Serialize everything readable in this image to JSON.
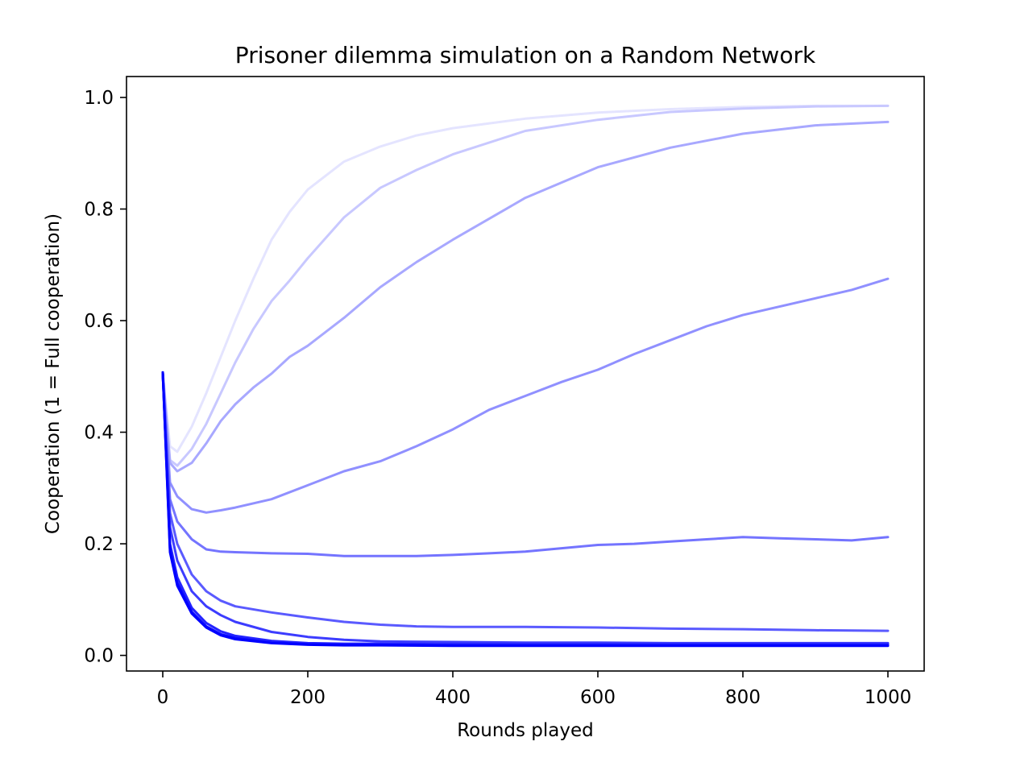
{
  "chart_data": {
    "type": "line",
    "title": "Prisoner dilemma simulation on a Random Network",
    "xlabel": "Rounds played",
    "ylabel": "Cooperation (1 = Full cooperation)",
    "xlim": [
      -50,
      1050
    ],
    "ylim": [
      -0.028,
      1.0375
    ],
    "xticks": [
      0,
      200,
      400,
      600,
      800,
      1000
    ],
    "yticks": [
      0.0,
      0.2,
      0.4,
      0.6,
      0.8,
      1.0
    ],
    "xtick_labels": [
      "0",
      "200",
      "400",
      "600",
      "800",
      "1000"
    ],
    "ytick_labels": [
      "0.0",
      "0.2",
      "0.4",
      "0.6",
      "0.8",
      "1.0"
    ],
    "grid": false,
    "legend": "none",
    "series": [
      {
        "color": "#e4e4ff",
        "x": [
          0,
          10,
          20,
          40,
          60,
          80,
          100,
          125,
          150,
          175,
          200,
          250,
          300,
          350,
          400,
          500,
          600,
          700,
          800,
          900,
          1000
        ],
        "y": [
          0.507,
          0.375,
          0.365,
          0.41,
          0.47,
          0.535,
          0.6,
          0.675,
          0.745,
          0.795,
          0.835,
          0.885,
          0.912,
          0.932,
          0.945,
          0.962,
          0.973,
          0.979,
          0.983,
          0.985,
          0.985
        ]
      },
      {
        "color": "#c8c8ff",
        "x": [
          0,
          10,
          20,
          40,
          60,
          80,
          100,
          125,
          150,
          175,
          200,
          250,
          300,
          350,
          400,
          500,
          600,
          700,
          800,
          900,
          1000
        ],
        "y": [
          0.507,
          0.35,
          0.34,
          0.37,
          0.415,
          0.47,
          0.525,
          0.585,
          0.635,
          0.672,
          0.712,
          0.785,
          0.838,
          0.87,
          0.898,
          0.94,
          0.96,
          0.974,
          0.98,
          0.984,
          0.985
        ]
      },
      {
        "color": "#a8a8ff",
        "x": [
          0,
          10,
          20,
          40,
          60,
          80,
          100,
          125,
          150,
          175,
          200,
          250,
          300,
          350,
          400,
          500,
          600,
          700,
          800,
          900,
          1000
        ],
        "y": [
          0.507,
          0.345,
          0.33,
          0.345,
          0.38,
          0.42,
          0.45,
          0.48,
          0.505,
          0.535,
          0.555,
          0.605,
          0.66,
          0.705,
          0.745,
          0.82,
          0.875,
          0.91,
          0.935,
          0.95,
          0.956
        ]
      },
      {
        "color": "#9090ff",
        "x": [
          0,
          10,
          20,
          40,
          60,
          80,
          100,
          150,
          200,
          250,
          300,
          350,
          400,
          450,
          500,
          550,
          600,
          650,
          700,
          750,
          800,
          850,
          900,
          950,
          1000
        ],
        "y": [
          0.507,
          0.31,
          0.285,
          0.262,
          0.256,
          0.26,
          0.265,
          0.28,
          0.305,
          0.33,
          0.348,
          0.375,
          0.405,
          0.44,
          0.465,
          0.49,
          0.512,
          0.54,
          0.565,
          0.59,
          0.61,
          0.625,
          0.64,
          0.655,
          0.675
        ]
      },
      {
        "color": "#7474ff",
        "x": [
          0,
          10,
          20,
          40,
          60,
          80,
          100,
          150,
          200,
          250,
          300,
          350,
          400,
          450,
          500,
          550,
          600,
          650,
          700,
          750,
          800,
          850,
          900,
          950,
          1000
        ],
        "y": [
          0.507,
          0.28,
          0.24,
          0.208,
          0.19,
          0.186,
          0.185,
          0.183,
          0.182,
          0.178,
          0.178,
          0.178,
          0.18,
          0.183,
          0.186,
          0.192,
          0.198,
          0.2,
          0.204,
          0.208,
          0.212,
          0.21,
          0.208,
          0.206,
          0.212
        ]
      },
      {
        "color": "#5a5aff",
        "x": [
          0,
          10,
          20,
          40,
          60,
          80,
          100,
          150,
          200,
          250,
          300,
          350,
          400,
          500,
          600,
          700,
          800,
          900,
          1000
        ],
        "y": [
          0.507,
          0.255,
          0.2,
          0.145,
          0.115,
          0.098,
          0.088,
          0.077,
          0.068,
          0.06,
          0.055,
          0.052,
          0.051,
          0.051,
          0.05,
          0.048,
          0.047,
          0.045,
          0.044
        ]
      },
      {
        "color": "#3c3cff",
        "x": [
          0,
          10,
          20,
          40,
          60,
          80,
          100,
          150,
          200,
          250,
          300,
          400,
          500,
          600,
          700,
          800,
          900,
          1000
        ],
        "y": [
          0.507,
          0.23,
          0.17,
          0.115,
          0.088,
          0.072,
          0.06,
          0.042,
          0.033,
          0.028,
          0.025,
          0.024,
          0.023,
          0.023,
          0.022,
          0.022,
          0.022,
          0.022
        ]
      },
      {
        "color": "#2424ff",
        "x": [
          0,
          10,
          20,
          40,
          60,
          80,
          100,
          150,
          200,
          250,
          300,
          400,
          500,
          600,
          700,
          800,
          900,
          1000
        ],
        "y": [
          0.507,
          0.2,
          0.14,
          0.085,
          0.058,
          0.043,
          0.035,
          0.026,
          0.022,
          0.021,
          0.021,
          0.02,
          0.02,
          0.02,
          0.02,
          0.02,
          0.02,
          0.02
        ]
      },
      {
        "color": "#0c0cff",
        "x": [
          0,
          10,
          20,
          40,
          60,
          80,
          100,
          150,
          200,
          250,
          300,
          400,
          500,
          600,
          700,
          800,
          900,
          1000
        ],
        "y": [
          0.507,
          0.19,
          0.13,
          0.078,
          0.052,
          0.038,
          0.031,
          0.023,
          0.02,
          0.019,
          0.019,
          0.018,
          0.018,
          0.018,
          0.018,
          0.018,
          0.018,
          0.018
        ]
      },
      {
        "color": "#0000ff",
        "x": [
          0,
          10,
          20,
          40,
          60,
          80,
          100,
          150,
          200,
          250,
          300,
          400,
          500,
          600,
          700,
          800,
          900,
          1000
        ],
        "y": [
          0.507,
          0.185,
          0.125,
          0.075,
          0.05,
          0.036,
          0.029,
          0.022,
          0.019,
          0.018,
          0.018,
          0.017,
          0.017,
          0.017,
          0.017,
          0.017,
          0.017,
          0.017
        ]
      }
    ]
  }
}
